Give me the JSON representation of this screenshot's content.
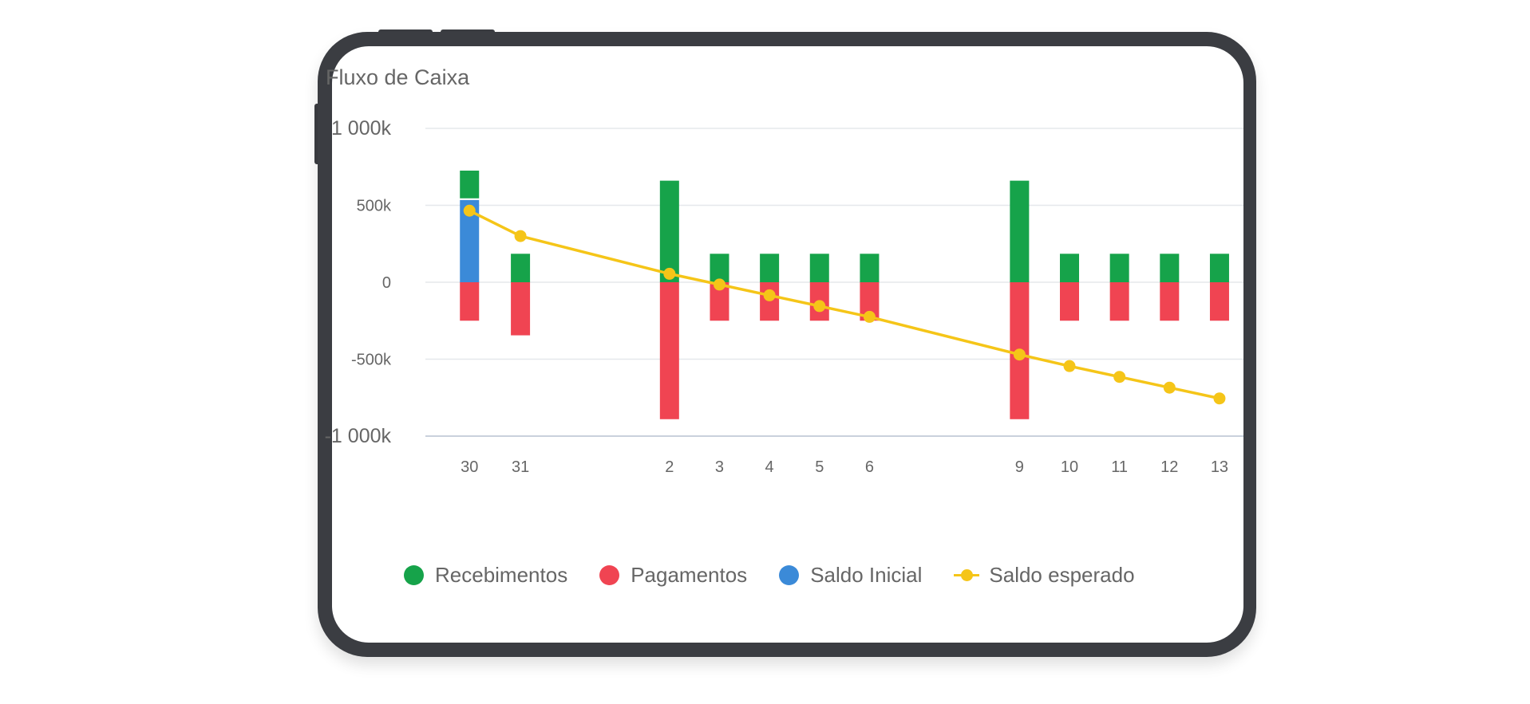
{
  "chart_data": {
    "type": "bar",
    "title": "Fluxo de Caixa",
    "categories": [
      "30",
      "31",
      "2",
      "3",
      "4",
      "5",
      "6",
      "9",
      "10",
      "11",
      "12",
      "13"
    ],
    "y_ticks": [
      {
        "value": 1000,
        "label": "1 000k"
      },
      {
        "value": 500,
        "label": "500k"
      },
      {
        "value": 0,
        "label": "0"
      },
      {
        "value": -500,
        "label": "-500k"
      },
      {
        "value": -1000,
        "label": "-1 000k"
      }
    ],
    "ylim": [
      -1000,
      1000
    ],
    "y_unit": "k",
    "stacked": true,
    "grid": true,
    "legend_position": "bottom",
    "series": [
      {
        "name": "Recebimentos",
        "type": "bar",
        "color": "#16a34a",
        "values": [
          180,
          185,
          660,
          185,
          185,
          185,
          185,
          660,
          185,
          185,
          185,
          185
        ]
      },
      {
        "name": "Pagamentos",
        "type": "bar",
        "color": "#f04452",
        "values": [
          -250,
          -345,
          -890,
          -250,
          -250,
          -250,
          -250,
          -890,
          -250,
          -250,
          -250,
          -250
        ]
      },
      {
        "name": "Saldo Inicial",
        "type": "bar",
        "color": "#3b8ad8",
        "values": [
          535,
          0,
          0,
          0,
          0,
          0,
          0,
          0,
          0,
          0,
          0,
          0
        ]
      },
      {
        "name": "Saldo esperado",
        "type": "line",
        "color": "#f5c518",
        "values": [
          465,
          300,
          55,
          -15,
          -85,
          -155,
          -225,
          -470,
          -545,
          -615,
          -685,
          -755
        ]
      }
    ]
  },
  "legend": {
    "items": [
      {
        "label": "Recebimentos",
        "marker": "dot",
        "color": "#16a34a"
      },
      {
        "label": "Pagamentos",
        "marker": "dot",
        "color": "#f04452"
      },
      {
        "label": "Saldo Inicial",
        "marker": "dot",
        "color": "#3b8ad8"
      },
      {
        "label": "Saldo esperado",
        "marker": "line",
        "color": "#f5c518"
      }
    ]
  }
}
